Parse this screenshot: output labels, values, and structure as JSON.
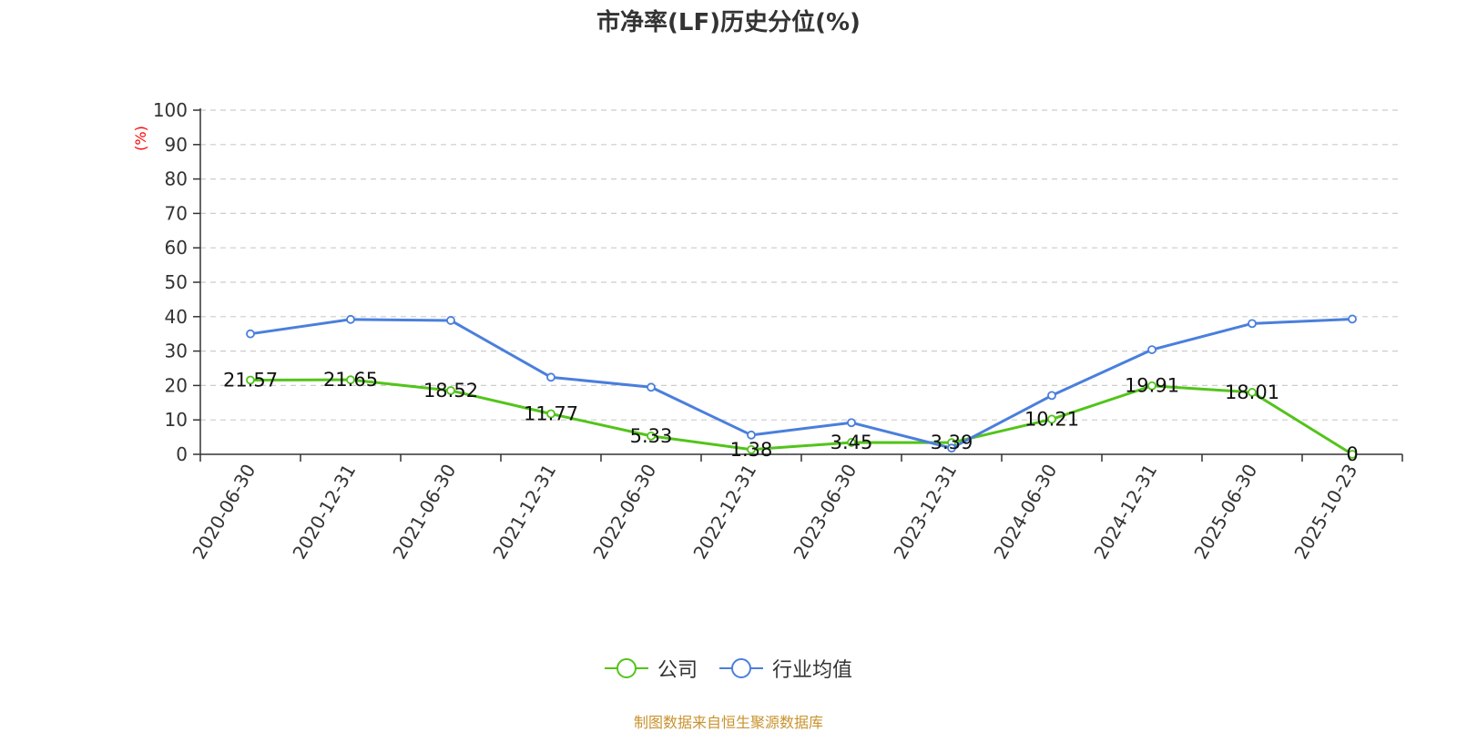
{
  "chart_data": {
    "type": "line",
    "title": "市净率(LF)历史分位(%)",
    "ylabel": "(%)",
    "xlabel": "",
    "ylim": [
      0,
      100
    ],
    "yticks": [
      0,
      10,
      20,
      30,
      40,
      50,
      60,
      70,
      80,
      90,
      100
    ],
    "grid": true,
    "legend_position": "bottom",
    "categories": [
      "2020-06-30",
      "2020-12-31",
      "2021-06-30",
      "2021-12-31",
      "2022-06-30",
      "2022-12-31",
      "2023-06-30",
      "2023-12-31",
      "2024-06-30",
      "2024-12-31",
      "2025-06-30",
      "2025-10-23"
    ],
    "series": [
      {
        "name": "公司",
        "color": "#52c41a",
        "values": [
          21.57,
          21.65,
          18.52,
          11.77,
          5.33,
          1.38,
          3.45,
          3.39,
          10.21,
          19.91,
          18.01,
          0
        ],
        "labels": [
          "21.57",
          "21.65",
          "18.52",
          "11.77",
          "5.33",
          "1.38",
          "3.45",
          "3.39",
          "10.21",
          "19.91",
          "18.01",
          "0"
        ]
      },
      {
        "name": "行业均值",
        "color": "#4a7fdc",
        "values": [
          35,
          39.2,
          38.9,
          22.4,
          19.5,
          5.6,
          9.2,
          1.8,
          17.1,
          30.4,
          38,
          39.3
        ]
      }
    ]
  },
  "source": "制图数据来自恒生聚源数据库"
}
